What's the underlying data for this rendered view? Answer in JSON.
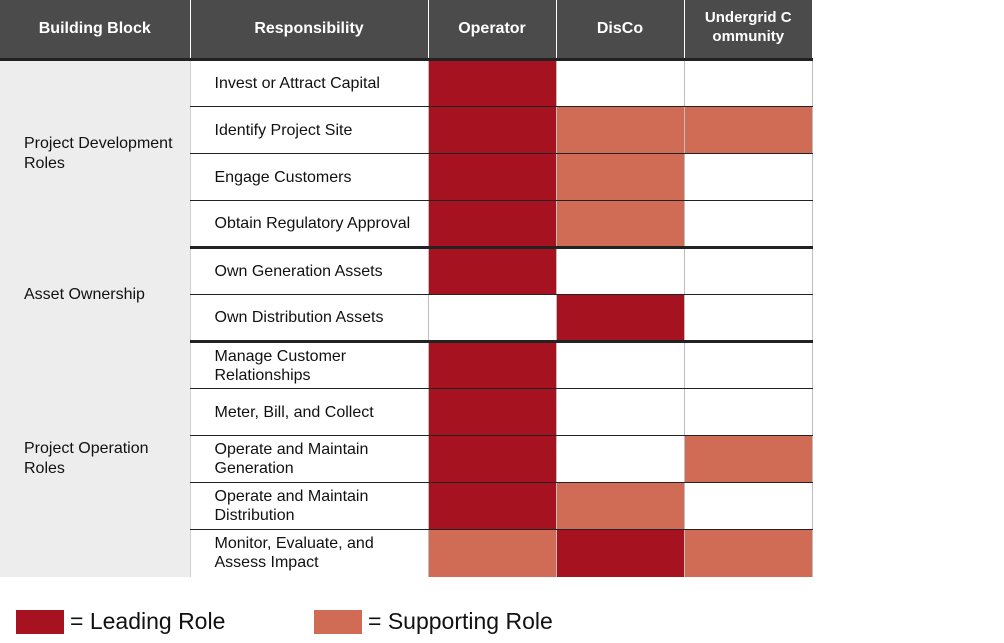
{
  "colors": {
    "leading": "#a6121f",
    "supporting": "#d06b56",
    "none": "#ffffff"
  },
  "table": {
    "headers": {
      "block": "Building Block",
      "responsibility": "Responsibility",
      "operator": "Operator",
      "disco": "DisCo",
      "undergrid": "Undergrid Community"
    },
    "groups": [
      {
        "name": "Project Development Roles",
        "rows": [
          {
            "responsibility": "Invest or Attract Capital",
            "operator": "leading",
            "disco": "none",
            "undergrid": "none"
          },
          {
            "responsibility": "Identify Project Site",
            "operator": "leading",
            "disco": "supporting",
            "undergrid": "supporting"
          },
          {
            "responsibility": "Engage Customers",
            "operator": "leading",
            "disco": "supporting",
            "undergrid": "none"
          },
          {
            "responsibility": "Obtain Regulatory Approval",
            "operator": "leading",
            "disco": "supporting",
            "undergrid": "none"
          }
        ]
      },
      {
        "name": "Asset Ownership",
        "rows": [
          {
            "responsibility": "Own Generation Assets",
            "operator": "leading",
            "disco": "none",
            "undergrid": "none"
          },
          {
            "responsibility": "Own Distribution Assets",
            "operator": "none",
            "disco": "leading",
            "undergrid": "none"
          }
        ]
      },
      {
        "name": "Project Operation Roles",
        "rows": [
          {
            "responsibility": "Manage Customer Relationships",
            "operator": "leading",
            "disco": "none",
            "undergrid": "none"
          },
          {
            "responsibility": "Meter, Bill, and Collect",
            "operator": "leading",
            "disco": "none",
            "undergrid": "none"
          },
          {
            "responsibility": "Operate and Maintain Generation",
            "operator": "leading",
            "disco": "none",
            "undergrid": "supporting"
          },
          {
            "responsibility": "Operate and Maintain Distribution",
            "operator": "leading",
            "disco": "supporting",
            "undergrid": "none"
          },
          {
            "responsibility": "Monitor, Evaluate, and Assess Impact",
            "operator": "supporting",
            "disco": "leading",
            "undergrid": "supporting"
          }
        ]
      }
    ]
  },
  "legend": {
    "leading_label": "= Leading Role",
    "supporting_label": "= Supporting Role"
  }
}
